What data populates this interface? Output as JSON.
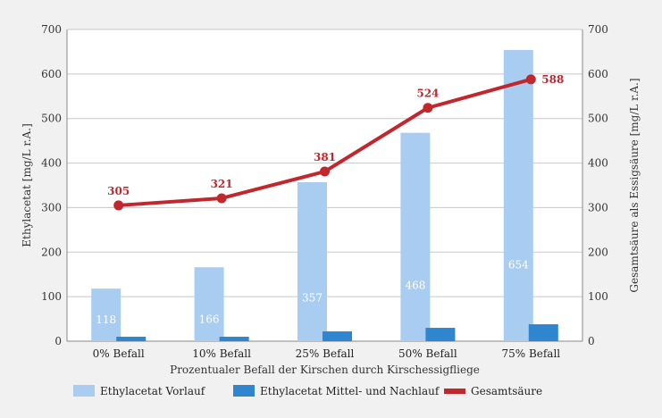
{
  "chart_data": {
    "type": "bar",
    "categories": [
      "0% Befall",
      "10% Befall",
      "25% Befall",
      "50% Befall",
      "75% Befall"
    ],
    "xlabel": "Prozentualer Befall der Kirschen durch Kirschessigfliege",
    "ylabel_left": "Ethylacetat [mg/L r.A.]",
    "ylabel_right": "Gesamtsäure als Essigsäure [mg/L r.A.]",
    "ylim": [
      0,
      700
    ],
    "yticks": [
      0,
      100,
      200,
      300,
      400,
      500,
      600,
      700
    ],
    "grid": true,
    "legend_position": "bottom",
    "series": [
      {
        "name": "Ethylacetat Vorlauf",
        "kind": "bar",
        "color": "#a9cdf0",
        "values": [
          118,
          166,
          357,
          468,
          654
        ],
        "labels_shown": true
      },
      {
        "name": "Ethylacetat Mittel- und Nachlauf",
        "kind": "bar",
        "color": "#2f86cf",
        "values": [
          10,
          10,
          22,
          30,
          38
        ],
        "labels_shown": false
      },
      {
        "name": "Gesamtsäure",
        "kind": "line",
        "color": "#c0282d",
        "values": [
          305,
          321,
          381,
          524,
          588
        ],
        "labels_shown": true
      }
    ]
  }
}
